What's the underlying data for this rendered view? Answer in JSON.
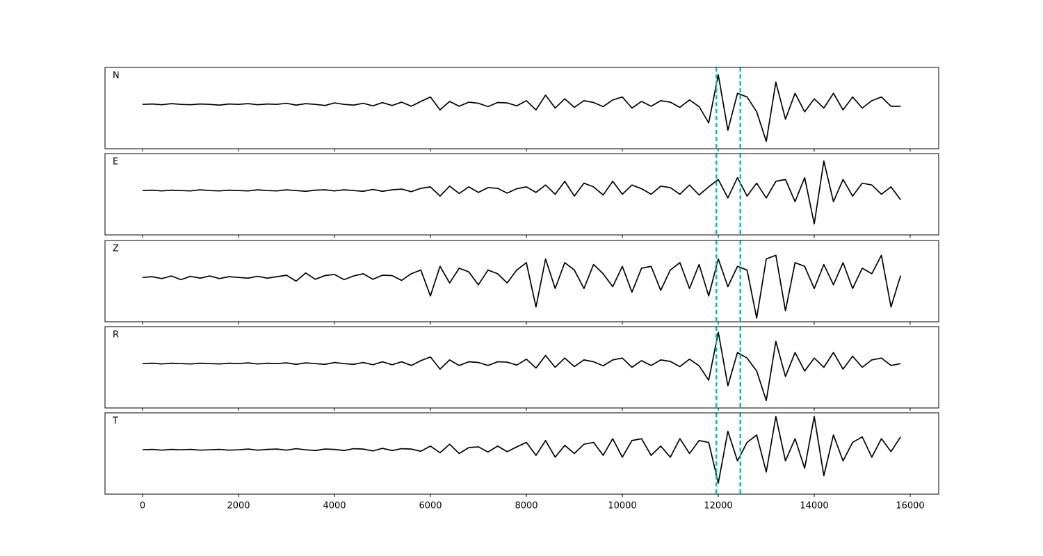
{
  "chart_data": {
    "type": "line",
    "x": [
      0,
      200,
      400,
      600,
      800,
      1000,
      1200,
      1400,
      1600,
      1800,
      2000,
      2200,
      2400,
      2600,
      2800,
      3000,
      3200,
      3400,
      3600,
      3800,
      4000,
      4200,
      4400,
      4600,
      4800,
      5000,
      5200,
      5400,
      5600,
      5800,
      6000,
      6200,
      6400,
      6600,
      6800,
      7000,
      7200,
      7400,
      7600,
      7800,
      8000,
      8200,
      8400,
      8600,
      8800,
      9000,
      9200,
      9400,
      9600,
      9800,
      10000,
      10200,
      10400,
      10600,
      10800,
      11000,
      11200,
      11400,
      11600,
      11800,
      12000,
      12200,
      12400,
      12600,
      12800,
      13000,
      13200,
      13400,
      13600,
      13800,
      14000,
      14200,
      14400,
      14600,
      14800,
      15000,
      15200,
      15400,
      15600,
      15800
    ],
    "xlim": [
      -783,
      16594
    ],
    "xticks": [
      0,
      2000,
      4000,
      6000,
      8000,
      10000,
      12000,
      14000,
      16000
    ],
    "ylim": [
      -1.2,
      1.0
    ],
    "vlines": {
      "values": [
        11960,
        12460
      ],
      "color": "#00bfbf"
    },
    "series": [
      {
        "name": "N",
        "color": "#000000",
        "values": [
          0,
          0.01,
          -0.01,
          0.02,
          0,
          -0.01,
          0.01,
          0,
          -0.02,
          0.01,
          0,
          0.02,
          -0.01,
          0.01,
          0,
          0.03,
          -0.02,
          0.02,
          0,
          -0.03,
          0.04,
          0,
          -0.02,
          0.03,
          -0.04,
          0.05,
          -0.03,
          0.06,
          -0.05,
          0.08,
          0.2,
          -0.15,
          0.08,
          -0.05,
          0.06,
          0.03,
          -0.06,
          0.05,
          0.04,
          -0.04,
          0.1,
          -0.15,
          0.25,
          -0.1,
          0.15,
          -0.08,
          0.1,
          0.05,
          -0.06,
          0.12,
          0.2,
          -0.1,
          0.08,
          -0.05,
          0.1,
          0.06,
          -0.08,
          0.12,
          -0.06,
          -0.5,
          0.8,
          -0.7,
          0.3,
          0.2,
          -0.2,
          -1.0,
          0.6,
          -0.4,
          0.3,
          -0.2,
          0.15,
          -0.1,
          0.3,
          -0.15,
          0.2,
          -0.1,
          0.1,
          0.2,
          -0.05,
          -0.05
        ]
      },
      {
        "name": "E",
        "color": "#000000",
        "values": [
          0,
          0.01,
          -0.01,
          0.01,
          0,
          -0.01,
          0.02,
          0,
          -0.01,
          0.01,
          0,
          -0.01,
          0.02,
          0,
          -0.01,
          0.02,
          0,
          -0.02,
          0.01,
          0.02,
          -0.01,
          0.02,
          0,
          -0.02,
          0.03,
          -0.02,
          0.02,
          0.04,
          -0.03,
          0.06,
          0.1,
          -0.15,
          0.12,
          -0.08,
          0.1,
          -0.05,
          0.08,
          0.06,
          -0.07,
          0.05,
          0.1,
          -0.05,
          0.15,
          -0.1,
          0.25,
          -0.15,
          0.2,
          0.1,
          -0.12,
          0.25,
          -0.1,
          0.15,
          0.05,
          -0.1,
          0.12,
          0.08,
          -0.1,
          0.15,
          -0.12,
          0.1,
          0.3,
          -0.2,
          0.35,
          -0.15,
          0.2,
          -0.2,
          0.25,
          0.3,
          -0.3,
          0.35,
          -0.9,
          0.8,
          -0.3,
          0.3,
          -0.15,
          0.2,
          0.15,
          -0.1,
          0.1,
          -0.25
        ]
      },
      {
        "name": "Z",
        "color": "#000000",
        "values": [
          0,
          0.02,
          -0.03,
          0.04,
          -0.06,
          0.03,
          -0.02,
          0.04,
          -0.03,
          0.02,
          0,
          -0.02,
          0.03,
          -0.02,
          0.02,
          0.06,
          -0.1,
          0.12,
          -0.05,
          0.05,
          0.08,
          -0.06,
          0.04,
          0.1,
          -0.05,
          0.06,
          0.05,
          -0.08,
          0.1,
          0.2,
          -0.5,
          0.3,
          -0.15,
          0.25,
          0.15,
          -0.2,
          0.2,
          0.1,
          -0.15,
          0.2,
          0.4,
          -0.8,
          0.5,
          -0.3,
          0.4,
          0.2,
          -0.3,
          0.35,
          0.1,
          -0.25,
          0.3,
          -0.4,
          0.25,
          0.3,
          -0.35,
          0.2,
          0.4,
          -0.3,
          0.35,
          -0.5,
          0.5,
          -0.25,
          0.3,
          0.2,
          -1.1,
          0.5,
          0.6,
          -0.9,
          0.4,
          0.3,
          -0.3,
          0.35,
          -0.2,
          0.4,
          -0.3,
          0.25,
          0.1,
          0.6,
          -0.8,
          0.05
        ]
      },
      {
        "name": "R",
        "color": "#000000",
        "values": [
          0,
          0.01,
          -0.01,
          0.01,
          0,
          -0.01,
          0.01,
          0,
          -0.01,
          0.01,
          0,
          0.02,
          -0.01,
          0.01,
          0,
          0.02,
          -0.02,
          0.02,
          0,
          -0.02,
          0.03,
          0,
          -0.02,
          0.03,
          -0.03,
          0.05,
          -0.03,
          0.05,
          -0.05,
          0.08,
          0.18,
          -0.15,
          0.1,
          -0.05,
          0.05,
          0.03,
          -0.05,
          0.05,
          0.04,
          -0.04,
          0.12,
          -0.12,
          0.22,
          -0.1,
          0.15,
          -0.08,
          0.1,
          0.05,
          -0.06,
          0.1,
          0.15,
          -0.1,
          0.08,
          -0.05,
          0.1,
          0.06,
          -0.08,
          0.12,
          -0.06,
          -0.45,
          0.85,
          -0.6,
          0.3,
          0.15,
          -0.2,
          -1.0,
          0.6,
          -0.35,
          0.3,
          -0.2,
          0.15,
          -0.1,
          0.3,
          -0.15,
          0.2,
          -0.1,
          0.1,
          0.15,
          -0.05,
          0
        ]
      },
      {
        "name": "T",
        "color": "#000000",
        "values": [
          0,
          0.01,
          -0.01,
          0.01,
          0,
          0.01,
          -0.01,
          0,
          0.01,
          -0.01,
          0,
          0.02,
          -0.01,
          0.01,
          0.02,
          -0.01,
          0.03,
          0,
          -0.02,
          0.02,
          0.01,
          -0.02,
          0.03,
          0.02,
          -0.03,
          0.04,
          -0.02,
          0.03,
          0.02,
          -0.04,
          0.1,
          -0.08,
          0.15,
          -0.1,
          0.06,
          0.08,
          -0.06,
          0.1,
          -0.05,
          0.08,
          0.2,
          -0.15,
          0.25,
          -0.2,
          0.12,
          -0.1,
          0.15,
          0.2,
          -0.15,
          0.3,
          -0.2,
          0.25,
          0.3,
          -0.15,
          0.1,
          -0.2,
          0.3,
          -0.1,
          0.25,
          0.2,
          -0.9,
          0.5,
          -0.3,
          0.2,
          0.4,
          -0.6,
          0.9,
          -0.3,
          0.3,
          -0.5,
          0.9,
          -0.7,
          0.4,
          -0.3,
          0.2,
          0.35,
          -0.2,
          0.3,
          -0.05,
          0.35
        ]
      }
    ]
  }
}
